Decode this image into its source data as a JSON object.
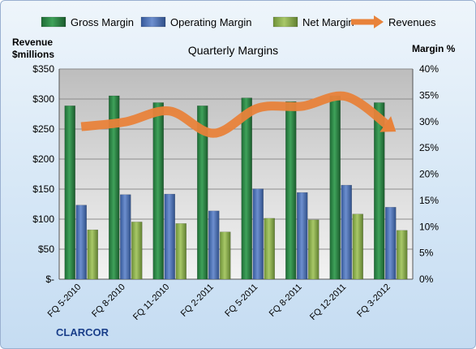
{
  "chart_data": {
    "type": "bar",
    "title": "Quarterly Margins",
    "ylabel": "Revenue $millions",
    "y2label": "Margin %",
    "company": "CLARCOR",
    "categories": [
      "FQ 5-2010",
      "FQ 8-2010",
      "FQ 11-2010",
      "FQ 2-2011",
      "FQ 5-2011",
      "FQ 8-2011",
      "FQ 12-2011",
      "FQ 3-2012"
    ],
    "ylim": [
      0,
      350
    ],
    "y2lim": [
      0,
      40
    ],
    "y_ticks": [
      "$-",
      "$50",
      "$100",
      "$150",
      "$200",
      "$250",
      "$300",
      "$350"
    ],
    "y2_ticks": [
      "0%",
      "5%",
      "10%",
      "15%",
      "20%",
      "25%",
      "30%",
      "35%",
      "40%"
    ],
    "series": [
      {
        "name": "Gross Margin",
        "axis": "right",
        "unit": "%",
        "color": "#2e8b47",
        "values": [
          33.0,
          34.9,
          33.6,
          33.0,
          34.5,
          33.8,
          34.9,
          33.6
        ]
      },
      {
        "name": "Operating Margin",
        "axis": "right",
        "unit": "%",
        "color": "#4a6fb0",
        "values": [
          14.1,
          16.1,
          16.2,
          13.0,
          17.2,
          16.5,
          17.9,
          13.7
        ]
      },
      {
        "name": "Net Margin",
        "axis": "right",
        "unit": "%",
        "color": "#8ab04a",
        "values": [
          9.4,
          10.9,
          10.6,
          9.0,
          11.6,
          11.3,
          12.4,
          9.3
        ]
      },
      {
        "name": "Revenues",
        "axis": "left",
        "unit": "$M",
        "type": "line",
        "color": "#e8823a",
        "values": [
          254,
          262,
          280,
          243,
          285,
          288,
          304,
          252
        ]
      }
    ],
    "legend_position": "top",
    "grid": true
  }
}
